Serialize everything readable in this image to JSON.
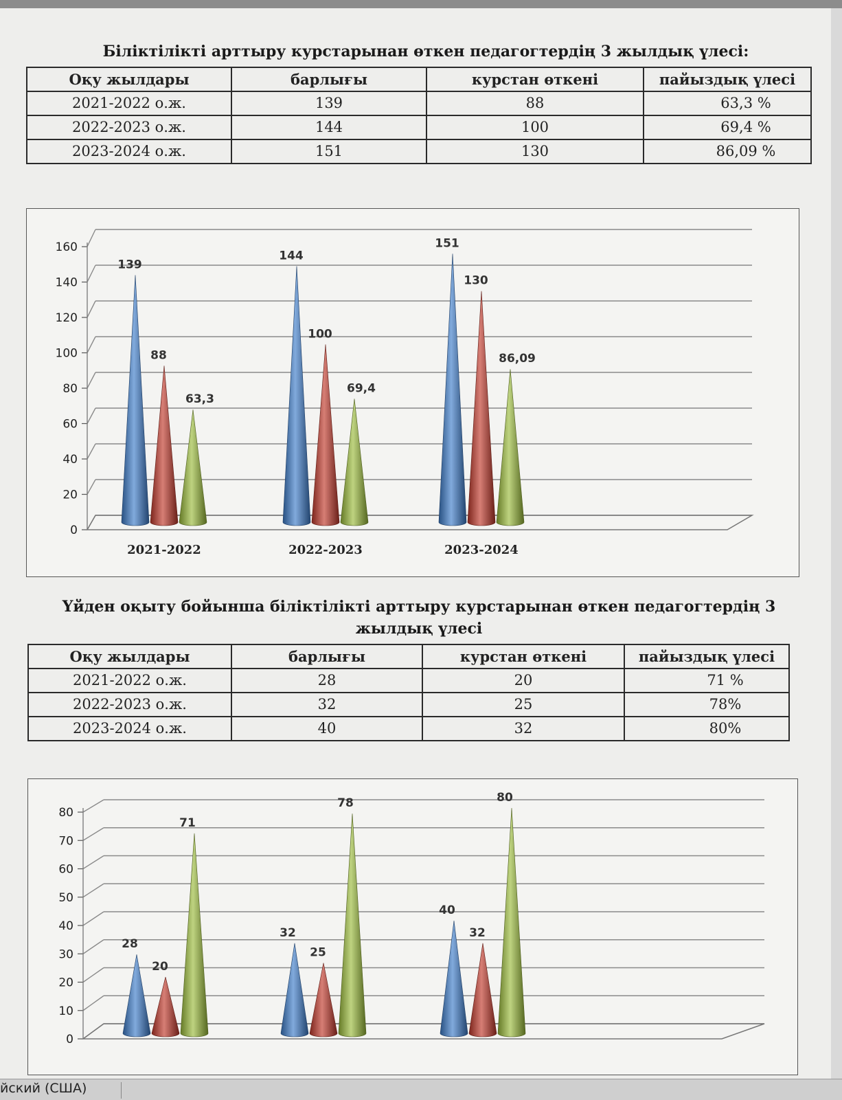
{
  "section1": {
    "title": "Біліктілікті  арттыру курстарынан өткен педагогтердің 3 жылдық үлесі:",
    "table": {
      "headers": [
        "Оқу жылдары",
        "барлығы",
        "курстан өткені",
        "пайыздық үлесі"
      ],
      "rows": [
        [
          "2021-2022 о.ж.",
          "139",
          "88",
          "63,3 %"
        ],
        [
          "2022-2023 о.ж.",
          "144",
          "100",
          "69,4 %"
        ],
        [
          "2023-2024 о.ж.",
          "151",
          "130",
          "86,09 %"
        ]
      ]
    }
  },
  "section2": {
    "title_line1": "Үйден оқыту бойынша біліктілікті  арттыру курстарынан өткен педагогтердің 3",
    "title_line2": "жылдық үлесі",
    "table": {
      "headers": [
        "Оқу жылдары",
        "барлығы",
        "курстан өткені",
        "пайыздық үлесі"
      ],
      "rows": [
        [
          "2021-2022 о.ж.",
          "28",
          "20",
          "71 %"
        ],
        [
          "2022-2023 о.ж.",
          "32",
          "25",
          "78%"
        ],
        [
          "2023-2024 о.ж.",
          "40",
          "32",
          "80%"
        ]
      ]
    }
  },
  "chart_data": [
    {
      "type": "bar",
      "style": "3d-cone",
      "categories": [
        "2021-2022",
        "2022-2023",
        "2023-2024"
      ],
      "series": [
        {
          "values": [
            139,
            144,
            151
          ],
          "color": "#3d7cc9"
        },
        {
          "values": [
            88,
            100,
            130
          ],
          "color": "#c0392b"
        },
        {
          "values": [
            63.3,
            69.4,
            86.09
          ],
          "color": "#9bbb3b"
        }
      ],
      "data_labels": [
        [
          "139",
          "88",
          "63,3"
        ],
        [
          "144",
          "100",
          "69,4"
        ],
        [
          "151",
          "130",
          "86,09"
        ]
      ],
      "ylim": [
        0,
        160
      ],
      "yticks": [
        0,
        20,
        40,
        60,
        80,
        100,
        120,
        140,
        160
      ],
      "grid": true,
      "legend": "none"
    },
    {
      "type": "bar",
      "style": "3d-cone",
      "categories": [
        "",
        "",
        ""
      ],
      "series": [
        {
          "values": [
            28,
            32,
            40
          ],
          "color": "#3d7cc9"
        },
        {
          "values": [
            20,
            25,
            32
          ],
          "color": "#c0392b"
        },
        {
          "values": [
            71,
            78,
            80
          ],
          "color": "#9bbb3b"
        }
      ],
      "data_labels": [
        [
          "28",
          "20",
          "71"
        ],
        [
          "32",
          "25",
          "78"
        ],
        [
          "40",
          "32",
          "80"
        ]
      ],
      "ylim": [
        0,
        80
      ],
      "yticks": [
        0,
        10,
        20,
        30,
        40,
        50,
        60,
        70,
        80
      ],
      "grid": true,
      "legend": "none"
    }
  ],
  "statusbar": {
    "language": "йский (США)"
  }
}
